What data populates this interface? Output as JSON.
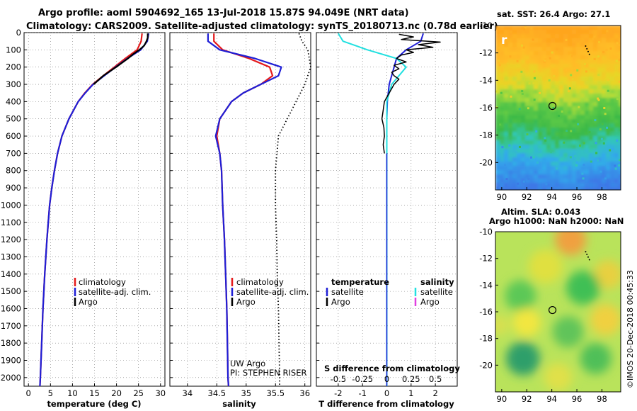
{
  "header": {
    "line1": "Argo profile: aoml 5904692_165 13-Jul-2018 15.87S 94.049E (NRT data)",
    "line2": "Climatology: CARS2009. Satellite-adjusted climatology: synTS_20180713.nc (0.78d earlier)"
  },
  "colors": {
    "climatology": "#e41a1c",
    "satellite": "#1f1fd6",
    "argo": "#000000",
    "sat_salinity": "#22e0e0",
    "argo_salinity": "#e040e0"
  },
  "chart_data": [
    {
      "type": "line",
      "id": "temperature",
      "xlabel": "temperature (deg C)",
      "ylabel": "",
      "xlim": [
        -1,
        31
      ],
      "ylim": [
        2050,
        0
      ],
      "x_ticks": [
        "0",
        "5",
        "10",
        "15",
        "20",
        "25",
        "30"
      ],
      "y_ticks": [
        "0",
        "100",
        "200",
        "300",
        "400",
        "500",
        "600",
        "700",
        "800",
        "900",
        "1000",
        "1100",
        "1200",
        "1300",
        "1400",
        "1500",
        "1600",
        "1700",
        "1800",
        "1900",
        "2000"
      ],
      "legend": [
        "climatology",
        "satellite-adj. clim.",
        "Argo"
      ],
      "series": [
        {
          "name": "climatology",
          "depth": [
            5,
            50,
            100,
            150,
            200,
            250,
            300,
            350,
            400,
            500,
            600,
            700,
            800,
            900,
            1000,
            1200,
            1400,
            1600,
            1800,
            2000,
            2050
          ],
          "values": [
            25.8,
            25.6,
            24.7,
            22.0,
            19.5,
            17.0,
            14.6,
            12.8,
            11.3,
            9.2,
            7.6,
            6.6,
            5.9,
            5.3,
            4.8,
            4.2,
            3.7,
            3.3,
            3.0,
            2.7,
            2.6
          ]
        },
        {
          "name": "satellite-adj. clim.",
          "depth": [
            5,
            50,
            100,
            150,
            200,
            250,
            300,
            350,
            400,
            500,
            600,
            700,
            800,
            900,
            1000,
            1200,
            1400,
            1600,
            1800,
            2000,
            2050
          ],
          "values": [
            27.3,
            27.0,
            25.5,
            22.5,
            19.8,
            17.2,
            14.7,
            12.9,
            11.3,
            9.2,
            7.6,
            6.6,
            5.9,
            5.3,
            4.8,
            4.2,
            3.7,
            3.3,
            3.0,
            2.7,
            2.6
          ]
        },
        {
          "name": "Argo",
          "depth": [
            5,
            30,
            50,
            75,
            100,
            125,
            150,
            200,
            250,
            300
          ],
          "values": [
            27.1,
            27.1,
            26.8,
            26.3,
            25.2,
            23.8,
            22.6,
            19.9,
            17.0,
            14.8
          ]
        }
      ]
    },
    {
      "type": "line",
      "id": "salinity",
      "xlabel": "salinity",
      "xlim": [
        33.7,
        36.1
      ],
      "ylim": [
        2050,
        0
      ],
      "x_ticks": [
        "34",
        "34.5",
        "35",
        "35.5",
        "36"
      ],
      "legend": [
        "climatology",
        "satellite-adj. clim.",
        "Argo"
      ],
      "annotations": [
        "UW Argo",
        "PI: STEPHEN RISER"
      ],
      "series": [
        {
          "name": "climatology",
          "depth": [
            5,
            50,
            100,
            150,
            200,
            250,
            300,
            350,
            400,
            500,
            600,
            700,
            800,
            1000,
            1200,
            1400,
            1600,
            1800,
            2000,
            2050
          ],
          "values": [
            34.45,
            34.45,
            34.6,
            35.05,
            35.4,
            35.45,
            35.25,
            34.95,
            34.75,
            34.55,
            34.5,
            34.55,
            34.58,
            34.6,
            34.63,
            34.65,
            34.67,
            34.68,
            34.69,
            34.7
          ]
        },
        {
          "name": "satellite-adj. clim.",
          "depth": [
            5,
            50,
            100,
            150,
            200,
            250,
            300,
            350,
            400,
            500,
            600,
            700,
            800,
            1000,
            1200,
            1400,
            1600,
            1800,
            2000,
            2050
          ],
          "values": [
            34.35,
            34.35,
            34.55,
            35.15,
            35.6,
            35.55,
            35.25,
            34.95,
            34.75,
            34.55,
            34.48,
            34.55,
            34.58,
            34.6,
            34.63,
            34.65,
            34.67,
            34.68,
            34.69,
            34.7
          ]
        },
        {
          "name": "Argo",
          "depth": [],
          "values": []
        },
        {
          "name": "reference",
          "depth": [
            5,
            50,
            100,
            200,
            300,
            400,
            500,
            600,
            800,
            1000,
            1200,
            1400,
            1600,
            1800,
            2000,
            2050
          ],
          "values": [
            35.9,
            35.95,
            36.05,
            36.1,
            36.0,
            35.85,
            35.7,
            35.55,
            35.5,
            35.5,
            35.52,
            35.53,
            35.55,
            35.56,
            35.57,
            35.57
          ]
        }
      ]
    },
    {
      "type": "line",
      "id": "difference",
      "xlabel": "T difference from climatology",
      "xlim": [
        -2.9,
        2.9
      ],
      "ylim": [
        2050,
        0
      ],
      "x_ticks": [
        "-2",
        "-1",
        "0",
        "1",
        "2"
      ],
      "x2_label": "S difference from climatology",
      "x2_ticks": [
        "-0.5",
        "-0.25",
        "0",
        "0.25",
        "0.5"
      ],
      "legend_temp_title": "temperature",
      "legend_temp": [
        "satellite",
        "Argo"
      ],
      "legend_sal_title": "salinity",
      "legend_sal": [
        "satellite",
        "Argo"
      ],
      "series": [
        {
          "name": "temperature satellite",
          "depth": [
            5,
            50,
            100,
            150,
            200,
            300,
            400,
            500,
            700,
            1000,
            1500,
            2000,
            2050
          ],
          "values": [
            1.5,
            1.4,
            0.8,
            0.4,
            0.3,
            0.1,
            0.02,
            0,
            0,
            0,
            0,
            0,
            0
          ]
        },
        {
          "name": "temperature Argo",
          "depth": [
            10,
            25,
            40,
            55,
            70,
            85,
            100,
            115,
            130,
            150,
            170,
            190,
            210,
            230,
            250,
            270,
            300,
            350,
            400,
            450,
            500,
            550,
            600,
            650,
            700
          ],
          "values": [
            0.5,
            1.1,
            0.6,
            2.2,
            1.3,
            1.9,
            0.8,
            1.1,
            0.6,
            0.4,
            0.8,
            0.3,
            0.5,
            0.2,
            0.3,
            0.5,
            0.3,
            0.1,
            -0.1,
            -0.15,
            -0.2,
            -0.12,
            -0.1,
            -0.15,
            -0.1
          ]
        },
        {
          "name": "salinity satellite",
          "depth": [
            5,
            50,
            100,
            150,
            200,
            300,
            400,
            500,
            700,
            1000,
            1500,
            2000,
            2050
          ],
          "values": [
            -0.5,
            -0.45,
            -0.2,
            0.1,
            0.2,
            0.05,
            0,
            0,
            0,
            0,
            0,
            0,
            0
          ]
        },
        {
          "name": "salinity Argo",
          "depth": [],
          "values": []
        }
      ]
    },
    {
      "type": "heatmap",
      "id": "sst_map",
      "title": "sat. SST: 26.4 Argo: 27.1",
      "x_ticks": [
        "90",
        "92",
        "94",
        "96",
        "98"
      ],
      "y_ticks": [
        "-10",
        "-12",
        "-14",
        "-16",
        "-18",
        "-20"
      ],
      "xlim": [
        89.5,
        99.5
      ],
      "ylim": [
        -22,
        -10
      ],
      "marker": {
        "lon": 94.05,
        "lat": -15.87
      }
    },
    {
      "type": "heatmap",
      "id": "sla_map",
      "title": "Altim. SLA: 0.043",
      "subtitle": "Argo h1000: NaN h2000: NaN",
      "x_ticks": [
        "90",
        "92",
        "94",
        "96",
        "98"
      ],
      "y_ticks": [
        "-10",
        "-12",
        "-14",
        "-16",
        "-18",
        "-20"
      ],
      "xlim": [
        89.5,
        99.5
      ],
      "ylim": [
        -22,
        -10
      ],
      "marker": {
        "lon": 94.05,
        "lat": -15.87
      }
    }
  ],
  "footer": {
    "credit": "©IMOS 20-Dec-2018 00:45:33"
  }
}
